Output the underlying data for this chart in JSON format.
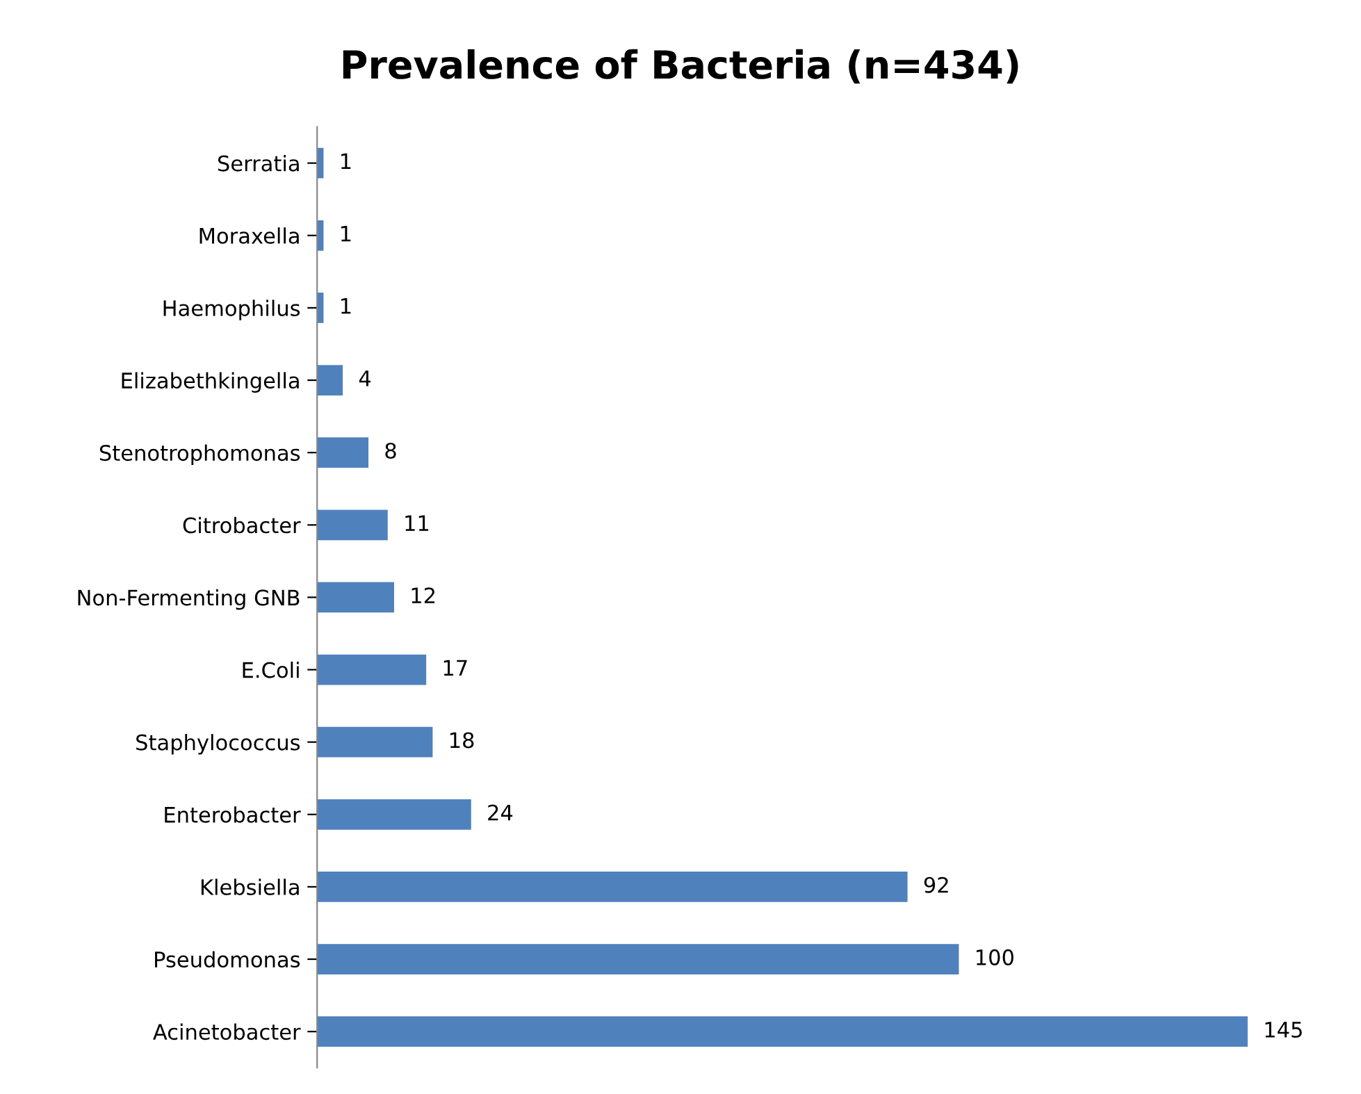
{
  "chart_data": {
    "type": "bar",
    "orientation": "horizontal",
    "title": "Prevalence of Bacteria (n=434)",
    "categories": [
      "Serratia",
      "Moraxella",
      "Haemophilus",
      "Elizabethkingella",
      "Stenotrophomonas",
      "Citrobacter",
      "Non-Fermenting GNB",
      "E.Coli",
      "Staphylococcus",
      "Enterobacter",
      "Klebsiella",
      "Pseudomonas",
      "Acinetobacter"
    ],
    "values": [
      1,
      1,
      1,
      4,
      8,
      11,
      12,
      17,
      18,
      24,
      92,
      100,
      145
    ],
    "color": "#4f81bd",
    "data_labels": true,
    "grid": false,
    "legend": false,
    "tick_labels": "y"
  }
}
